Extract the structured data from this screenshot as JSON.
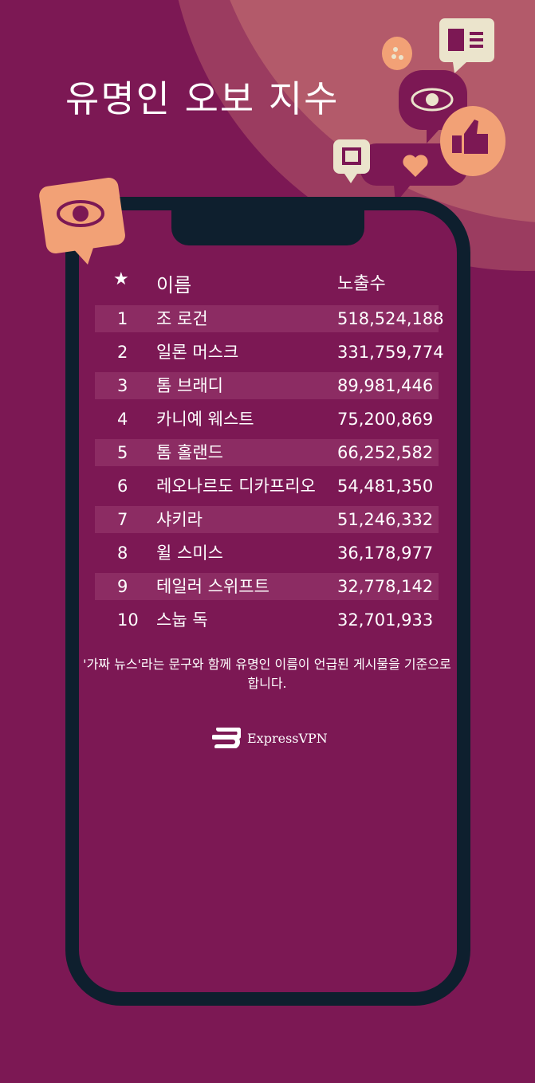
{
  "title": "유명인 오보 지수",
  "table": {
    "headers": {
      "rank": "★",
      "name": "이름",
      "count": "노출수"
    },
    "rows": [
      {
        "rank": "1",
        "name": "조 로건",
        "count": "518,524,188"
      },
      {
        "rank": "2",
        "name": "일론 머스크",
        "count": "331,759,774"
      },
      {
        "rank": "3",
        "name": "톰 브래디",
        "count": "89,981,446"
      },
      {
        "rank": "4",
        "name": "카니예 웨스트",
        "count": "75,200,869"
      },
      {
        "rank": "5",
        "name": "톰 홀랜드",
        "count": "66,252,582"
      },
      {
        "rank": "6",
        "name": "레오나르도 디카프리오",
        "count": "54,481,350"
      },
      {
        "rank": "7",
        "name": "샤키라",
        "count": "51,246,332"
      },
      {
        "rank": "8",
        "name": "윌 스미스",
        "count": "36,178,977"
      },
      {
        "rank": "9",
        "name": "테일러 스위프트",
        "count": "32,778,142"
      },
      {
        "rank": "10",
        "name": "스눕 독",
        "count": "32,701,933"
      }
    ]
  },
  "footnote": "'가짜 뉴스'라는 문구와 함께 유명인 이름이 언급된 게시물을 기준으로 합니다.",
  "brand": "ExpressVPN",
  "colors": {
    "background": "#7c1854",
    "phone": "#0e1f2e",
    "accent": "#f2a176",
    "cream": "#ebe4cc"
  }
}
